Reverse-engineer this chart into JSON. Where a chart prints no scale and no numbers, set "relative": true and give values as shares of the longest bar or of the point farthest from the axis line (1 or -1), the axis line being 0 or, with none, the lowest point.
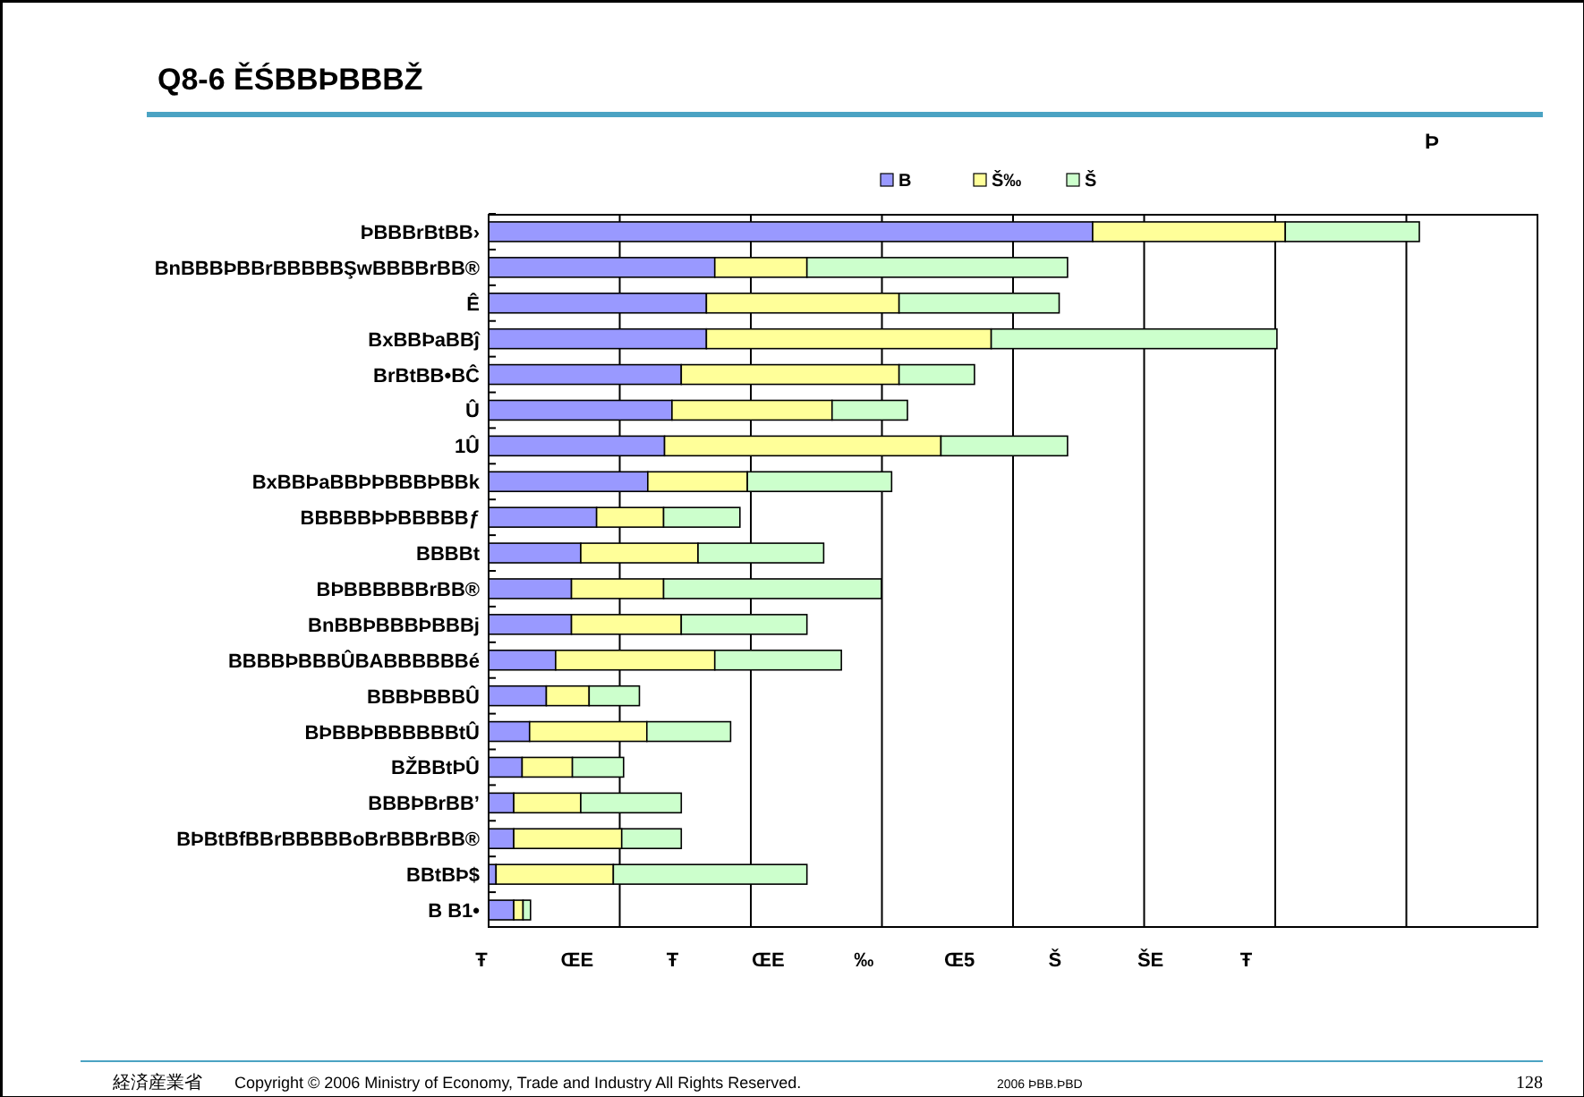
{
  "chart_data": {
    "type": "bar",
    "orientation": "horizontal",
    "stacked": true,
    "relative": true,
    "grid": "x",
    "legend": "top",
    "title": "Q8-6 ĚŚBBÞBBBŽ",
    "categories": [
      "ÞBBBrBtBB›",
      "BnBBBÞBBrBBBBBŞwBBBBrBB®",
      "Ê",
      "BxBBÞaBBĵ",
      "BrBtBB•BĈ",
      "Û",
      "1Û",
      "BxBBÞaBBÞÞBBBÞBBk",
      "BBBBBÞÞBBBBBƒ",
      "BBBBt",
      "BÞBBBBBBrBB®",
      "BnBBÞBBBÞBBBj",
      "BBBBÞBBBÛBABBBBBBé",
      "BBBÞBBBÛ",
      "BÞBBÞBBBBBBtÛ",
      "BŽBBtÞÛ",
      "BBBÞBrBB’",
      "BÞBtBfBBrBBBBBoBrBBBrBB®",
      "BBtBÞ$",
      "B B1•"
    ],
    "series": [
      {
        "name": "B",
        "color": "#9999ff",
        "values": [
          0.649,
          0.243,
          0.234,
          0.234,
          0.207,
          0.197,
          0.189,
          0.171,
          0.116,
          0.099,
          0.089,
          0.089,
          0.072,
          0.062,
          0.044,
          0.036,
          0.027,
          0.027,
          0.008,
          0.027
        ]
      },
      {
        "name": "Š‰",
        "color": "#ffff99",
        "values": [
          0.207,
          0.099,
          0.207,
          0.306,
          0.234,
          0.172,
          0.297,
          0.107,
          0.072,
          0.126,
          0.099,
          0.118,
          0.171,
          0.046,
          0.126,
          0.054,
          0.072,
          0.116,
          0.126,
          0.01
        ]
      },
      {
        "name": "Š",
        "color": "#ccffcc",
        "values": [
          0.144,
          0.28,
          0.172,
          0.307,
          0.081,
          0.081,
          0.136,
          0.155,
          0.082,
          0.135,
          0.234,
          0.135,
          0.136,
          0.054,
          0.09,
          0.055,
          0.108,
          0.064,
          0.208,
          0.008
        ]
      }
    ],
    "annotations": [
      "Þ",
      "Ŧ",
      "ŒE",
      "Ŧ",
      "ŒE",
      "‰",
      "Œ5",
      "Š",
      "ŠE",
      "Ŧ",
      "経済産業省",
      "Copyright © 2006 Ministry of Economy, Trade and Industry  All Rights Reserved.",
      "2006 ÞBB.ÞBD",
      "128"
    ]
  }
}
